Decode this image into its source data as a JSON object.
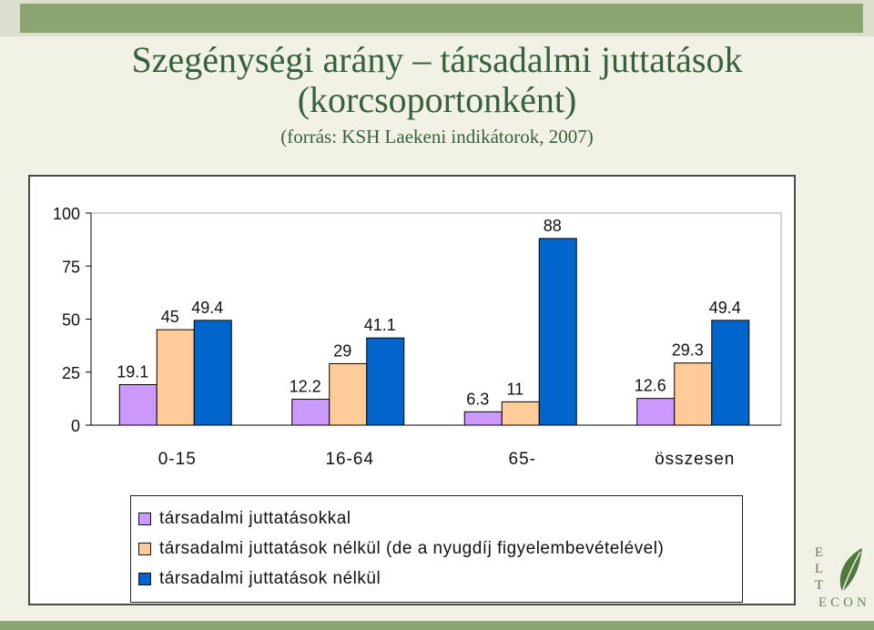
{
  "title": {
    "line1": "Szegénységi arány – társadalmi juttatások",
    "line2": "(korcsoportonként)",
    "source": "(forrás: KSH Laekeni indikátorok, 2007)"
  },
  "chart_data": {
    "type": "bar",
    "categories": [
      "0-15",
      "16-64",
      "65-",
      "összesen"
    ],
    "series": [
      {
        "name": "társadalmi juttatásokkal",
        "values": [
          19.1,
          12.2,
          6.3,
          12.6
        ],
        "color": "#cc99ff"
      },
      {
        "name": "társadalmi juttatások nélkül (de a nyugdíj figyelembevételével)",
        "values": [
          45,
          29,
          11,
          29.3
        ],
        "color": "#ffcc99"
      },
      {
        "name": "társadalmi juttatások nélkül",
        "values": [
          49.4,
          41.1,
          88,
          49.4
        ],
        "color": "#0066cc"
      }
    ],
    "value_labels": [
      [
        "19.1",
        "12.2",
        "6.3",
        "12.6"
      ],
      [
        "45",
        "29",
        "11",
        "29.3"
      ],
      [
        "49.4",
        "41.1",
        "88",
        "49.4"
      ]
    ],
    "yticks": [
      "0",
      "25",
      "50",
      "75",
      "100"
    ],
    "ylim": [
      0,
      100
    ],
    "grid": false,
    "legend_position": "bottom"
  },
  "logo": {
    "letters": [
      "E",
      "L",
      "T"
    ],
    "econ": "ECON"
  },
  "colors": {
    "title": "#37613a",
    "accent": "#8aa572",
    "background": "#f2f1e6"
  }
}
